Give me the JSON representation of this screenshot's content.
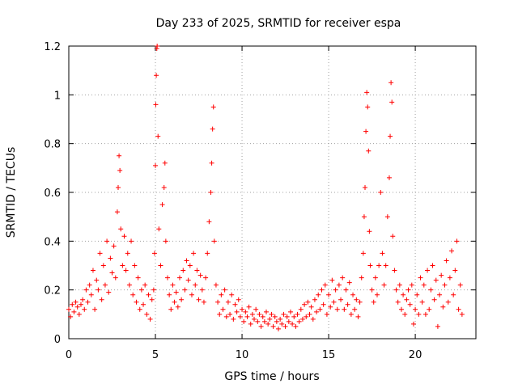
{
  "chart_data": {
    "type": "scatter",
    "title": "Day 233 of 2025, SRMTID for receiver espa",
    "xlabel": "GPS time / hours",
    "ylabel": "SRMTID / TECUs",
    "xlim": [
      0,
      23.5
    ],
    "ylim": [
      0,
      1.2
    ],
    "xticks": [
      0,
      5,
      10,
      15,
      20
    ],
    "xtick_labels": [
      "0",
      "5",
      "10",
      "15",
      "20"
    ],
    "yticks": [
      0,
      0.2,
      0.4,
      0.6,
      0.8,
      1,
      1.2
    ],
    "ytick_labels": [
      "0",
      "0.2",
      "0.4",
      "0.6",
      "0.8",
      "1",
      "1.2"
    ],
    "grid": true,
    "marker": "+",
    "color": "#ff0000",
    "series": [
      {
        "name": "espa",
        "points": [
          [
            0.0,
            0.12
          ],
          [
            0.1,
            0.09
          ],
          [
            0.2,
            0.14
          ],
          [
            0.3,
            0.11
          ],
          [
            0.4,
            0.15
          ],
          [
            0.5,
            0.13
          ],
          [
            0.6,
            0.1
          ],
          [
            0.7,
            0.14
          ],
          [
            0.8,
            0.16
          ],
          [
            0.9,
            0.12
          ],
          [
            1.0,
            0.2
          ],
          [
            1.1,
            0.15
          ],
          [
            1.2,
            0.22
          ],
          [
            1.3,
            0.18
          ],
          [
            1.4,
            0.28
          ],
          [
            1.5,
            0.12
          ],
          [
            1.6,
            0.24
          ],
          [
            1.7,
            0.2
          ],
          [
            1.8,
            0.35
          ],
          [
            1.9,
            0.16
          ],
          [
            2.0,
            0.3
          ],
          [
            2.1,
            0.22
          ],
          [
            2.2,
            0.4
          ],
          [
            2.3,
            0.19
          ],
          [
            2.4,
            0.33
          ],
          [
            2.5,
            0.27
          ],
          [
            2.6,
            0.38
          ],
          [
            2.7,
            0.25
          ],
          [
            2.8,
            0.52
          ],
          [
            2.85,
            0.62
          ],
          [
            2.9,
            0.75
          ],
          [
            2.95,
            0.69
          ],
          [
            3.0,
            0.45
          ],
          [
            3.1,
            0.3
          ],
          [
            3.2,
            0.42
          ],
          [
            3.3,
            0.28
          ],
          [
            3.4,
            0.35
          ],
          [
            3.5,
            0.22
          ],
          [
            3.6,
            0.4
          ],
          [
            3.7,
            0.18
          ],
          [
            3.8,
            0.3
          ],
          [
            3.9,
            0.15
          ],
          [
            4.0,
            0.25
          ],
          [
            4.1,
            0.12
          ],
          [
            4.2,
            0.2
          ],
          [
            4.3,
            0.14
          ],
          [
            4.4,
            0.22
          ],
          [
            4.5,
            0.1
          ],
          [
            4.6,
            0.18
          ],
          [
            4.7,
            0.08
          ],
          [
            4.8,
            0.16
          ],
          [
            4.9,
            0.2
          ],
          [
            4.95,
            0.35
          ],
          [
            5.0,
            0.71
          ],
          [
            5.02,
            0.96
          ],
          [
            5.05,
            1.08
          ],
          [
            5.08,
            1.19
          ],
          [
            5.1,
            1.2
          ],
          [
            5.15,
            0.83
          ],
          [
            5.2,
            0.45
          ],
          [
            5.3,
            0.3
          ],
          [
            5.4,
            0.55
          ],
          [
            5.5,
            0.62
          ],
          [
            5.55,
            0.72
          ],
          [
            5.6,
            0.4
          ],
          [
            5.7,
            0.25
          ],
          [
            5.8,
            0.18
          ],
          [
            5.9,
            0.12
          ],
          [
            6.0,
            0.22
          ],
          [
            6.1,
            0.15
          ],
          [
            6.2,
            0.19
          ],
          [
            6.3,
            0.13
          ],
          [
            6.4,
            0.25
          ],
          [
            6.5,
            0.16
          ],
          [
            6.6,
            0.28
          ],
          [
            6.7,
            0.2
          ],
          [
            6.8,
            0.32
          ],
          [
            6.9,
            0.24
          ],
          [
            7.0,
            0.3
          ],
          [
            7.1,
            0.18
          ],
          [
            7.2,
            0.35
          ],
          [
            7.3,
            0.22
          ],
          [
            7.4,
            0.28
          ],
          [
            7.5,
            0.16
          ],
          [
            7.6,
            0.26
          ],
          [
            7.7,
            0.2
          ],
          [
            7.8,
            0.15
          ],
          [
            7.9,
            0.25
          ],
          [
            8.0,
            0.35
          ],
          [
            8.1,
            0.48
          ],
          [
            8.2,
            0.6
          ],
          [
            8.25,
            0.72
          ],
          [
            8.3,
            0.86
          ],
          [
            8.35,
            0.95
          ],
          [
            8.4,
            0.4
          ],
          [
            8.5,
            0.22
          ],
          [
            8.6,
            0.15
          ],
          [
            8.7,
            0.1
          ],
          [
            8.8,
            0.18
          ],
          [
            8.9,
            0.12
          ],
          [
            9.0,
            0.2
          ],
          [
            9.1,
            0.09
          ],
          [
            9.2,
            0.15
          ],
          [
            9.3,
            0.1
          ],
          [
            9.4,
            0.18
          ],
          [
            9.5,
            0.08
          ],
          [
            9.6,
            0.14
          ],
          [
            9.7,
            0.11
          ],
          [
            9.8,
            0.16
          ],
          [
            9.9,
            0.09
          ],
          [
            10.0,
            0.12
          ],
          [
            10.1,
            0.07
          ],
          [
            10.2,
            0.11
          ],
          [
            10.3,
            0.09
          ],
          [
            10.4,
            0.13
          ],
          [
            10.5,
            0.06
          ],
          [
            10.6,
            0.1
          ],
          [
            10.7,
            0.08
          ],
          [
            10.8,
            0.12
          ],
          [
            10.9,
            0.07
          ],
          [
            11.0,
            0.1
          ],
          [
            11.1,
            0.05
          ],
          [
            11.2,
            0.09
          ],
          [
            11.3,
            0.07
          ],
          [
            11.4,
            0.11
          ],
          [
            11.5,
            0.06
          ],
          [
            11.6,
            0.08
          ],
          [
            11.7,
            0.1
          ],
          [
            11.8,
            0.05
          ],
          [
            11.9,
            0.09
          ],
          [
            12.0,
            0.07
          ],
          [
            12.1,
            0.04
          ],
          [
            12.2,
            0.08
          ],
          [
            12.3,
            0.06
          ],
          [
            12.4,
            0.1
          ],
          [
            12.5,
            0.05
          ],
          [
            12.6,
            0.09
          ],
          [
            12.7,
            0.07
          ],
          [
            12.8,
            0.11
          ],
          [
            12.9,
            0.06
          ],
          [
            13.0,
            0.09
          ],
          [
            13.1,
            0.05
          ],
          [
            13.2,
            0.1
          ],
          [
            13.3,
            0.07
          ],
          [
            13.4,
            0.12
          ],
          [
            13.5,
            0.08
          ],
          [
            13.6,
            0.14
          ],
          [
            13.7,
            0.09
          ],
          [
            13.8,
            0.15
          ],
          [
            13.9,
            0.1
          ],
          [
            14.0,
            0.13
          ],
          [
            14.1,
            0.08
          ],
          [
            14.2,
            0.16
          ],
          [
            14.3,
            0.11
          ],
          [
            14.4,
            0.18
          ],
          [
            14.5,
            0.12
          ],
          [
            14.6,
            0.2
          ],
          [
            14.7,
            0.14
          ],
          [
            14.8,
            0.22
          ],
          [
            14.9,
            0.1
          ],
          [
            15.0,
            0.18
          ],
          [
            15.1,
            0.13
          ],
          [
            15.2,
            0.24
          ],
          [
            15.3,
            0.15
          ],
          [
            15.4,
            0.2
          ],
          [
            15.5,
            0.12
          ],
          [
            15.6,
            0.22
          ],
          [
            15.7,
            0.16
          ],
          [
            15.8,
            0.25
          ],
          [
            15.9,
            0.12
          ],
          [
            16.0,
            0.2
          ],
          [
            16.1,
            0.14
          ],
          [
            16.2,
            0.23
          ],
          [
            16.3,
            0.1
          ],
          [
            16.4,
            0.18
          ],
          [
            16.5,
            0.12
          ],
          [
            16.6,
            0.16
          ],
          [
            16.7,
            0.09
          ],
          [
            16.8,
            0.15
          ],
          [
            16.9,
            0.25
          ],
          [
            17.0,
            0.35
          ],
          [
            17.05,
            0.5
          ],
          [
            17.1,
            0.62
          ],
          [
            17.15,
            0.85
          ],
          [
            17.2,
            1.01
          ],
          [
            17.25,
            0.95
          ],
          [
            17.3,
            0.77
          ],
          [
            17.35,
            0.44
          ],
          [
            17.4,
            0.3
          ],
          [
            17.5,
            0.2
          ],
          [
            17.6,
            0.15
          ],
          [
            17.7,
            0.25
          ],
          [
            17.8,
            0.18
          ],
          [
            17.9,
            0.3
          ],
          [
            18.0,
            0.6
          ],
          [
            18.1,
            0.35
          ],
          [
            18.2,
            0.22
          ],
          [
            18.3,
            0.3
          ],
          [
            18.4,
            0.5
          ],
          [
            18.5,
            0.66
          ],
          [
            18.55,
            0.83
          ],
          [
            18.6,
            1.05
          ],
          [
            18.65,
            0.97
          ],
          [
            18.7,
            0.42
          ],
          [
            18.8,
            0.28
          ],
          [
            18.9,
            0.2
          ],
          [
            19.0,
            0.15
          ],
          [
            19.1,
            0.22
          ],
          [
            19.2,
            0.12
          ],
          [
            19.3,
            0.18
          ],
          [
            19.4,
            0.1
          ],
          [
            19.5,
            0.16
          ],
          [
            19.6,
            0.2
          ],
          [
            19.7,
            0.14
          ],
          [
            19.8,
            0.22
          ],
          [
            19.9,
            0.06
          ],
          [
            20.0,
            0.12
          ],
          [
            20.1,
            0.18
          ],
          [
            20.2,
            0.1
          ],
          [
            20.3,
            0.25
          ],
          [
            20.4,
            0.15
          ],
          [
            20.5,
            0.22
          ],
          [
            20.6,
            0.1
          ],
          [
            20.7,
            0.28
          ],
          [
            20.8,
            0.12
          ],
          [
            20.9,
            0.2
          ],
          [
            21.0,
            0.3
          ],
          [
            21.1,
            0.16
          ],
          [
            21.2,
            0.24
          ],
          [
            21.3,
            0.05
          ],
          [
            21.4,
            0.18
          ],
          [
            21.5,
            0.26
          ],
          [
            21.6,
            0.13
          ],
          [
            21.7,
            0.22
          ],
          [
            21.8,
            0.32
          ],
          [
            21.9,
            0.15
          ],
          [
            22.0,
            0.25
          ],
          [
            22.1,
            0.36
          ],
          [
            22.2,
            0.18
          ],
          [
            22.3,
            0.28
          ],
          [
            22.4,
            0.4
          ],
          [
            22.5,
            0.12
          ],
          [
            22.6,
            0.22
          ],
          [
            22.7,
            0.1
          ]
        ]
      }
    ]
  }
}
